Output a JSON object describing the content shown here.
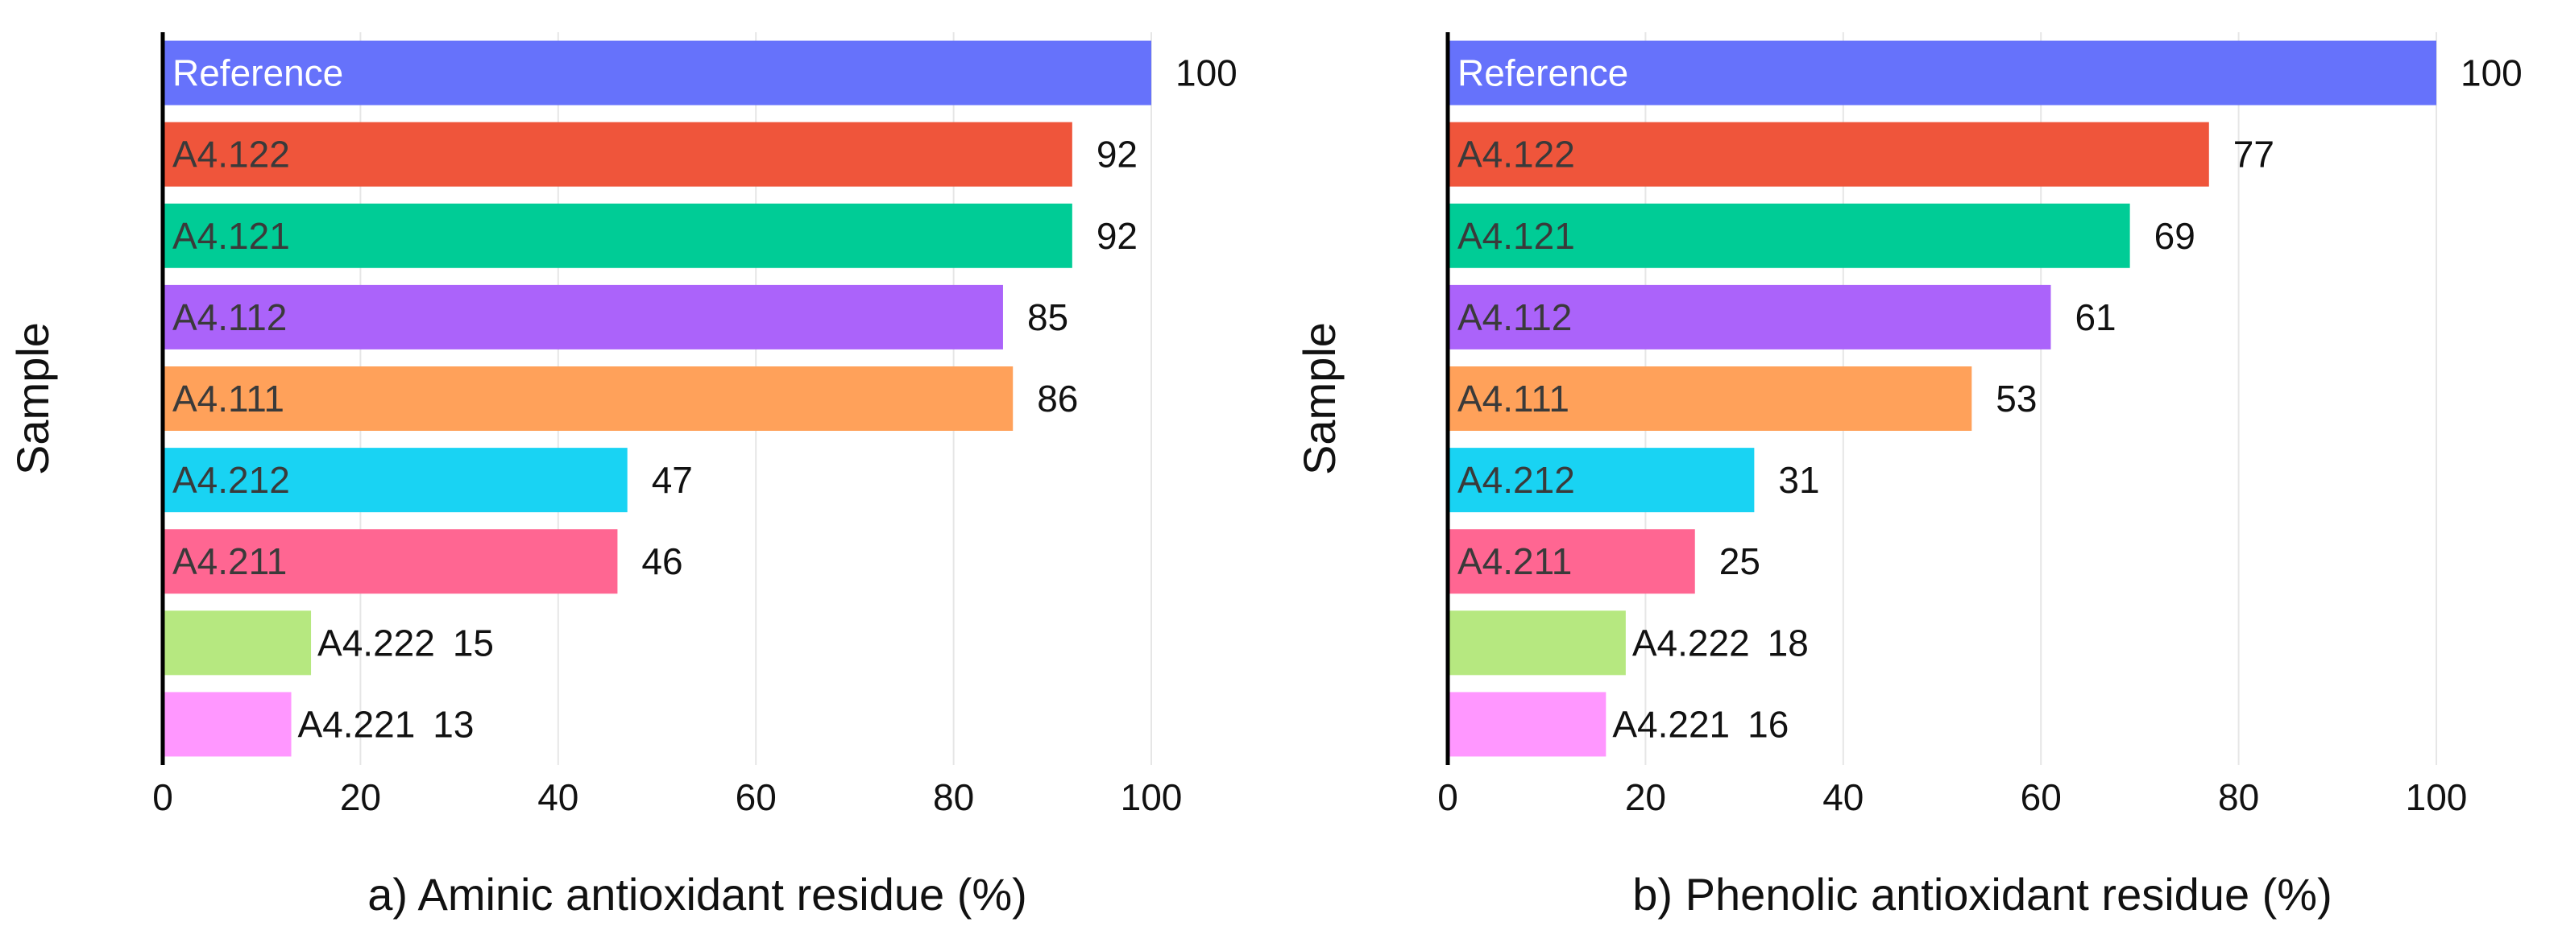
{
  "chart_data": [
    {
      "type": "bar",
      "orientation": "horizontal",
      "xlabel": "a) Aminic antioxidant residue (%)",
      "ylabel": "Sample",
      "xlim": [
        0,
        100
      ],
      "xticks": [
        "0",
        "20",
        "40",
        "60",
        "80",
        "100"
      ],
      "grid": "vertical",
      "categories": [
        "Reference",
        "A4.122",
        "A4.121",
        "A4.112",
        "A4.111",
        "A4.212",
        "A4.211",
        "A4.222",
        "A4.221"
      ],
      "values": [
        100,
        92,
        92,
        85,
        86,
        47,
        46,
        15,
        13
      ],
      "colors": [
        "#6672fb",
        "#ef553b",
        "#00cc96",
        "#ab63fa",
        "#ffa15a",
        "#19d3f3",
        "#ff6692",
        "#b6e880",
        "#ff97ff"
      ]
    },
    {
      "type": "bar",
      "orientation": "horizontal",
      "xlabel": "b) Phenolic antioxidant residue (%)",
      "ylabel": "Sample",
      "xlim": [
        0,
        100
      ],
      "xticks": [
        "0",
        "20",
        "40",
        "60",
        "80",
        "100"
      ],
      "grid": "vertical",
      "categories": [
        "Reference",
        "A4.122",
        "A4.121",
        "A4.112",
        "A4.111",
        "A4.212",
        "A4.211",
        "A4.222",
        "A4.221"
      ],
      "values": [
        100,
        77,
        69,
        61,
        53,
        31,
        25,
        18,
        16
      ],
      "colors": [
        "#6672fb",
        "#ef553b",
        "#00cc96",
        "#ab63fa",
        "#ffa15a",
        "#19d3f3",
        "#ff6692",
        "#b6e880",
        "#ff97ff"
      ]
    }
  ]
}
